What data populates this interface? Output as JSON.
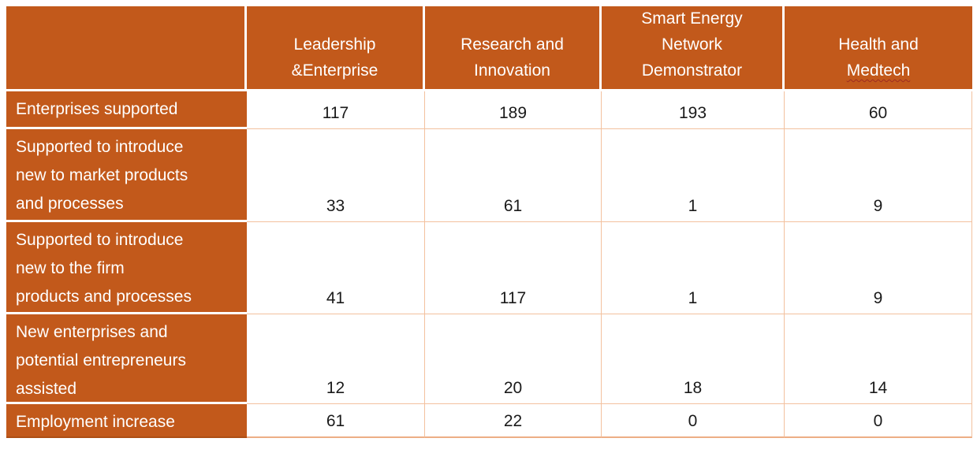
{
  "colors": {
    "accent_orange": "#C2591B",
    "grid_peach": "#F3C19E",
    "grid_outer_peach": "#EDAE85",
    "label_bottom_orange": "#AD4E14",
    "separator_white": "#FFFFFF",
    "value_text": "#1A1A1A",
    "header_text": "#FFFFFF",
    "squiggle_red": "#9E2B20"
  },
  "chart_data": {
    "type": "table",
    "title": "",
    "corner_label": "",
    "columns": [
      "Leadership &Enterprise",
      "Research and Innovation",
      "Smart Energy Network Demonstrator",
      "Health and Medtech"
    ],
    "column_lines": [
      [
        "Leadership",
        "&Enterprise"
      ],
      [
        "Research and",
        "Innovation"
      ],
      [
        "Smart Energy",
        "Network",
        "Demonstrator"
      ],
      [
        "Health and",
        "Medtech"
      ]
    ],
    "misspelled_word": "Medtech",
    "rows": [
      {
        "label": "Enterprises supported",
        "label_lines": [
          "Enterprises supported"
        ],
        "values": [
          117,
          189,
          193,
          60
        ]
      },
      {
        "label": "Supported to introduce new to market products and processes",
        "label_lines": [
          "Supported to introduce",
          "new to market products",
          "and processes"
        ],
        "values": [
          33,
          61,
          1,
          9
        ]
      },
      {
        "label": "Supported to introduce new to the firm products and processes",
        "label_lines": [
          "Supported to introduce",
          "new to the firm",
          "products and processes"
        ],
        "values": [
          41,
          117,
          1,
          9
        ]
      },
      {
        "label": "New enterprises and potential entrepreneurs assisted",
        "label_lines": [
          "New enterprises and",
          "potential entrepreneurs",
          "assisted"
        ],
        "values": [
          12,
          20,
          18,
          14
        ]
      },
      {
        "label": "Employment increase",
        "label_lines": [
          "Employment increase"
        ],
        "values": [
          61,
          22,
          0,
          0
        ]
      }
    ]
  }
}
